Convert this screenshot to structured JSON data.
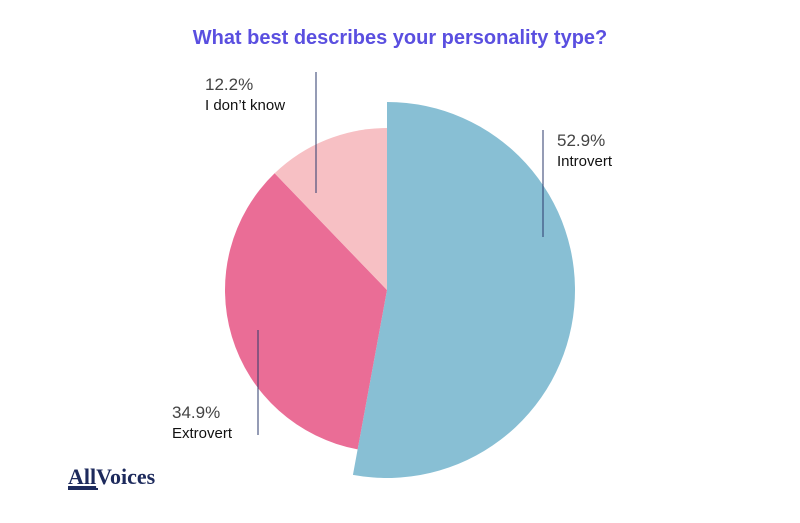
{
  "chart_data": {
    "type": "pie",
    "title": "What best describes your personality type?",
    "categories": [
      "Introvert",
      "Extrovert",
      "I don’t know"
    ],
    "values": [
      52.9,
      34.9,
      12.2
    ],
    "value_labels": [
      "52.9%",
      "34.9%",
      "12.2%"
    ],
    "colors": [
      "#88bfd4",
      "#ea6d96",
      "#f7c0c4"
    ]
  },
  "logo_parts": [
    "All",
    "Voices"
  ]
}
